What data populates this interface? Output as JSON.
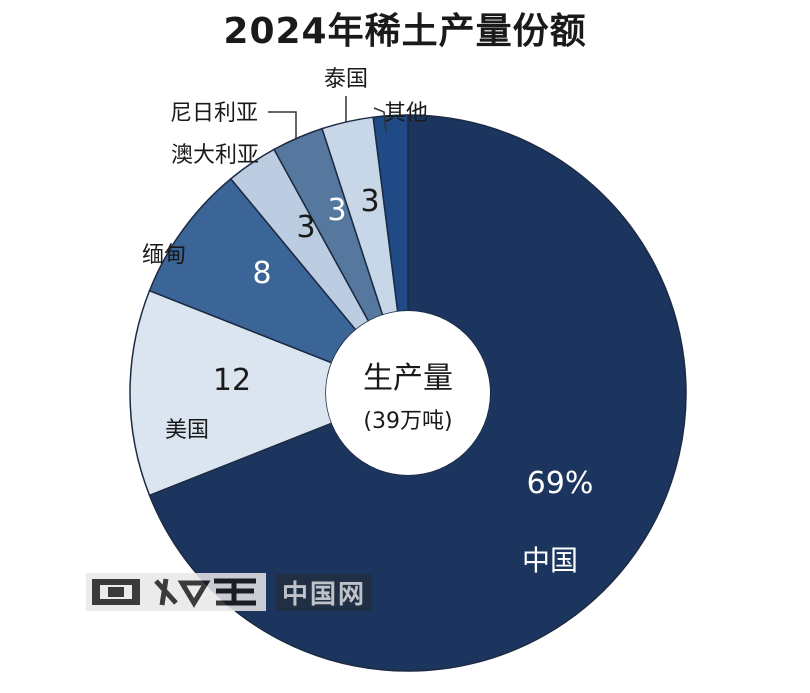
{
  "chart_data": {
    "type": "pie",
    "title": "2024年稀土产量份额",
    "center_label": "生产量",
    "center_sublabel": "(39万吨)",
    "slices": [
      {
        "label": "中国",
        "value": 69,
        "value_label": "69%",
        "color": "#1c355e"
      },
      {
        "label": "美国",
        "value": 12,
        "value_label": "12",
        "color": "#dbe5f0"
      },
      {
        "label": "缅甸",
        "value": 8,
        "value_label": "8",
        "color": "#3b6497"
      },
      {
        "label": "澳大利亚",
        "value": 3,
        "value_label": "3",
        "color": "#bccde2"
      },
      {
        "label": "尼日利亚",
        "value": 3,
        "value_label": "3",
        "color": "#56789f"
      },
      {
        "label": "泰国",
        "value": 3,
        "value_label": "3",
        "color": "#c8d7e8"
      },
      {
        "label": "其他",
        "value": 2,
        "value_label": "",
        "color": "#1f4a85"
      }
    ]
  },
  "watermark": {
    "text": "中国网"
  }
}
